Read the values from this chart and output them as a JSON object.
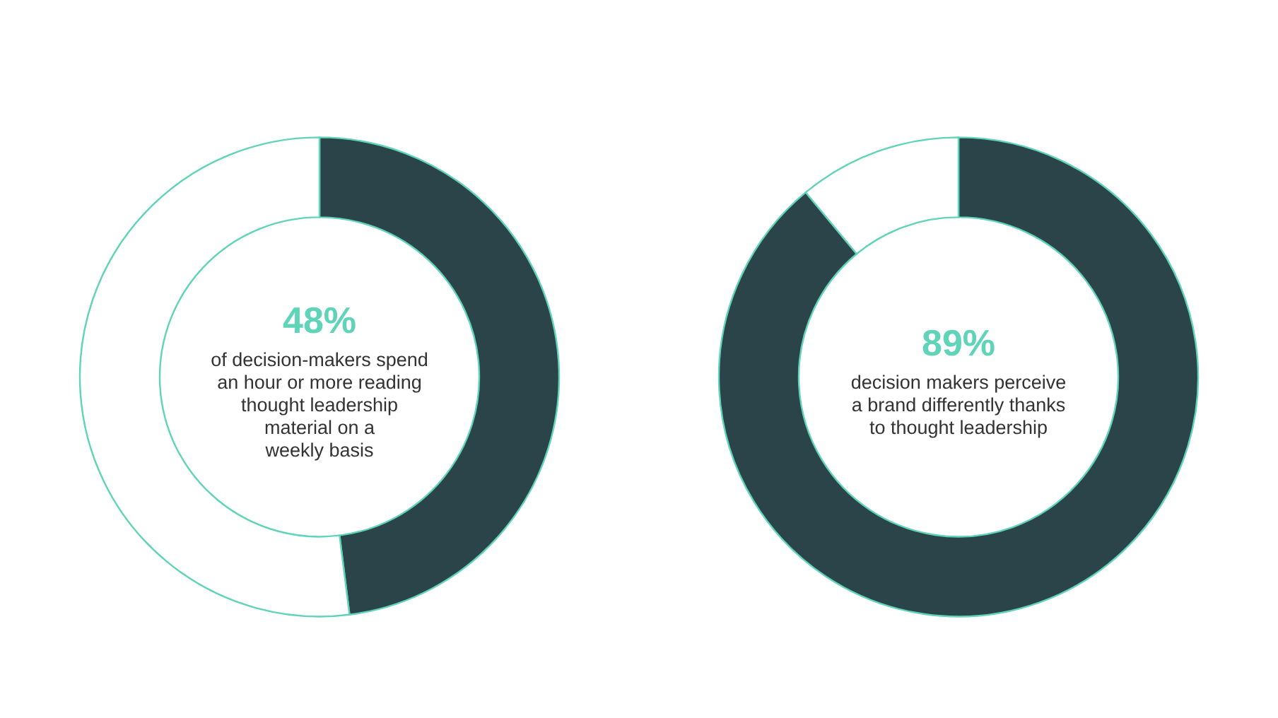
{
  "chart_data": [
    {
      "type": "donut",
      "categories": [
        null,
        null
      ],
      "values": [
        48,
        52
      ],
      "colors": [
        "#2b4449",
        "#ffffff"
      ],
      "value_labels": [
        "48%",
        null
      ],
      "annotations": [
        "of decision-makers spend\nan hour or more reading\nthought leadership\nmaterial on a\nweekly basis"
      ]
    },
    {
      "type": "donut",
      "categories": [
        null,
        null
      ],
      "values": [
        89,
        11
      ],
      "colors": [
        "#2b4449",
        "#ffffff"
      ],
      "value_labels": [
        "89%",
        null
      ],
      "annotations": [
        "decision makers perceive\na brand differently thanks\nto thought leadership"
      ]
    }
  ]
}
